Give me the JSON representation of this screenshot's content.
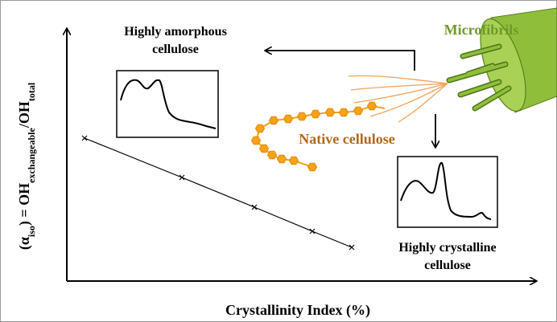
{
  "labels": {
    "amorphous": [
      "Highly amorphous",
      "cellulose"
    ],
    "microfibrils": "Microfibrils",
    "native": "Native cellulose",
    "crystalline": [
      "Highly crystalline",
      "cellulose"
    ]
  },
  "x_axis_label": "Crystallinity Index (%)",
  "y_axis_label": {
    "open": "(α",
    "sub1": "iso",
    "mid": ") = OH",
    "sub2": "exchangeable",
    "slash": "/OH",
    "sub3": "total"
  }
}
